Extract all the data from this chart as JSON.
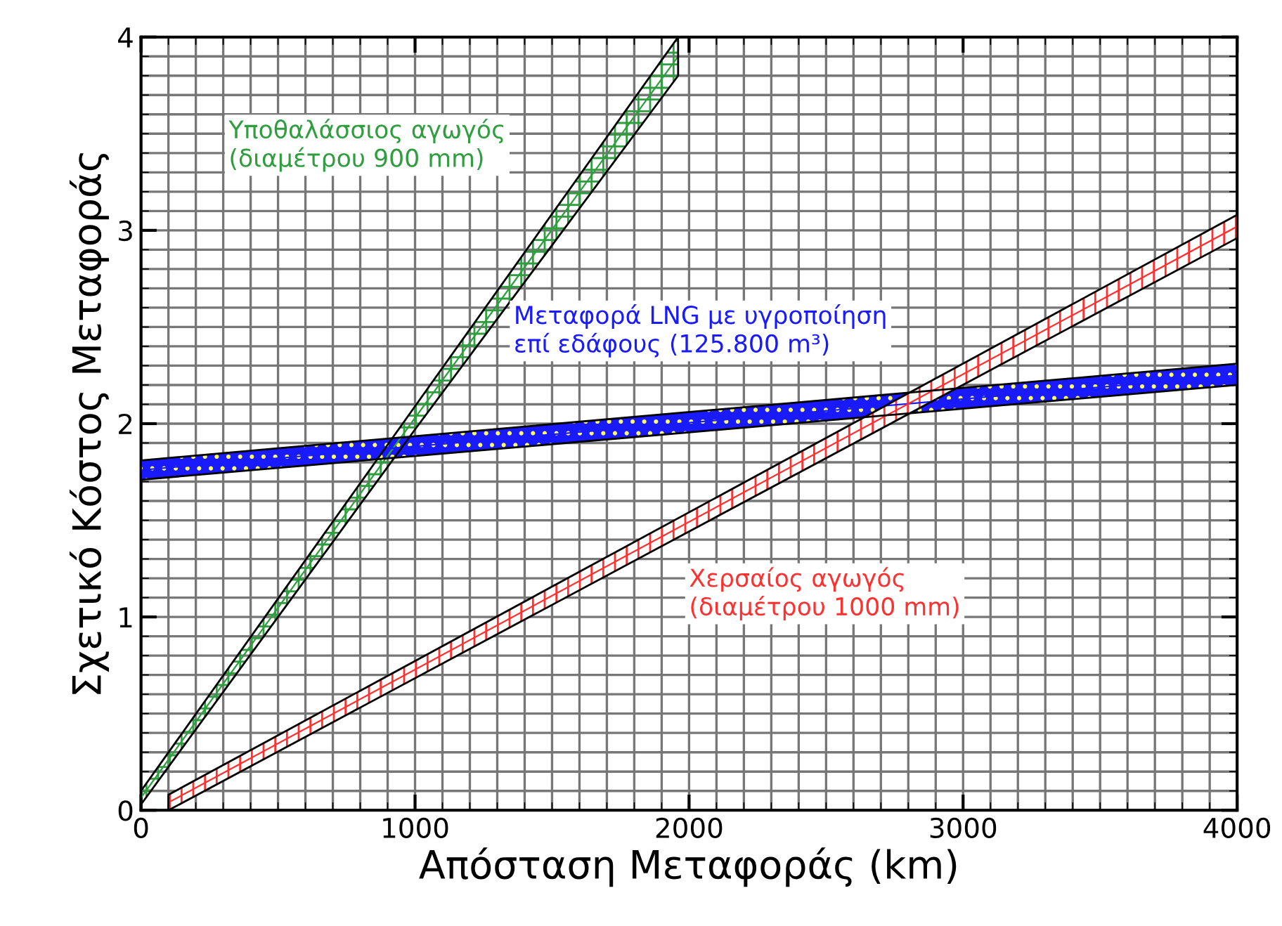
{
  "chart_data": {
    "type": "line",
    "xlabel": "Απόσταση Μεταφοράς (km)",
    "ylabel": "Σχετικό Κόστος Μεταφοράς",
    "xlim": [
      0,
      4000
    ],
    "xticks": [
      0,
      1000,
      2000,
      3000,
      4000
    ],
    "ylim": [
      0,
      4
    ],
    "yticks": [
      0,
      1,
      2,
      3,
      4
    ],
    "grid": true,
    "series": [
      {
        "name": "Υποθαλάσσιος αγωγός\n(διαμέτρου 900 mm)",
        "color": "#2e9e3e",
        "x": [
          0,
          1000,
          1960
        ],
        "values": [
          0.065,
          2.03,
          3.9
        ],
        "lower": [
          0.03,
          1.97,
          3.8
        ],
        "upper": [
          0.1,
          2.09,
          4.0
        ]
      },
      {
        "name": "Μεταφορά LNG με υγροποίηση\nεπί εδάφους (125.800 m³)",
        "color": "#1a1aff",
        "x": [
          0,
          4000
        ],
        "values": [
          1.76,
          2.25
        ],
        "lower": [
          1.71,
          2.2
        ],
        "upper": [
          1.81,
          2.31
        ]
      },
      {
        "name": "Χερσαίος αγωγός\n(διαμέτρου 1000 mm)",
        "color": "#ff3030",
        "x": [
          100,
          4000
        ],
        "values": [
          0.04,
          3.02
        ],
        "lower": [
          0.0,
          2.96
        ],
        "upper": [
          0.08,
          3.08
        ]
      }
    ]
  }
}
